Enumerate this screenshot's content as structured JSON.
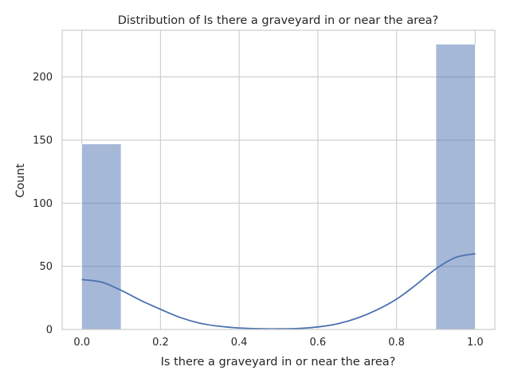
{
  "chart_data": {
    "type": "bar",
    "title": "Distribution of Is there a graveyard in or near the area?",
    "xlabel": "Is there a graveyard in or near the area?",
    "ylabel": "Count",
    "xlim": [
      -0.05,
      1.05
    ],
    "ylim": [
      0,
      237
    ],
    "xticks": [
      "0.0",
      "0.2",
      "0.4",
      "0.6",
      "0.8",
      "1.0"
    ],
    "yticks": [
      "0",
      "50",
      "100",
      "150",
      "200"
    ],
    "grid": true,
    "bins": [
      {
        "x0": 0.0,
        "x1": 0.1,
        "value": 147
      },
      {
        "x0": 0.1,
        "x1": 0.2,
        "value": 0
      },
      {
        "x0": 0.2,
        "x1": 0.3,
        "value": 0
      },
      {
        "x0": 0.3,
        "x1": 0.4,
        "value": 0
      },
      {
        "x0": 0.4,
        "x1": 0.5,
        "value": 0
      },
      {
        "x0": 0.5,
        "x1": 0.6,
        "value": 0
      },
      {
        "x0": 0.6,
        "x1": 0.7,
        "value": 0
      },
      {
        "x0": 0.7,
        "x1": 0.8,
        "value": 0
      },
      {
        "x0": 0.8,
        "x1": 0.9,
        "value": 0
      },
      {
        "x0": 0.9,
        "x1": 1.0,
        "value": 226
      }
    ],
    "kde": {
      "x": [
        0.0,
        0.05,
        0.1,
        0.15,
        0.2,
        0.25,
        0.3,
        0.35,
        0.4,
        0.45,
        0.5,
        0.55,
        0.6,
        0.65,
        0.7,
        0.75,
        0.8,
        0.85,
        0.9,
        0.95,
        1.0
      ],
      "y": [
        39.5,
        37.5,
        31,
        23,
        16,
        9.5,
        5,
        2.5,
        1.2,
        0.6,
        0.5,
        0.8,
        2,
        4.5,
        9,
        15.5,
        24,
        35.5,
        48,
        57,
        60
      ]
    },
    "colors": {
      "bar_fill": "#4c72b0",
      "bar_opacity": 0.5,
      "kde_line": "#4c72b0",
      "grid": "#cccccc"
    }
  }
}
